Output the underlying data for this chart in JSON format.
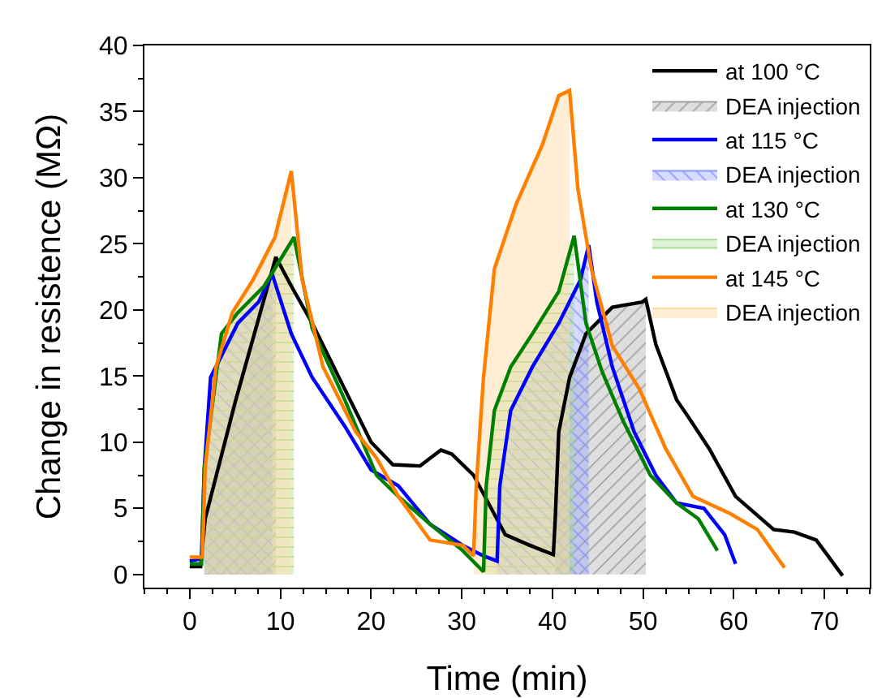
{
  "chart_data": {
    "type": "line",
    "xlabel": "Time (min)",
    "ylabel": "Change in resistence (MΩ)",
    "xlim": [
      -5,
      75
    ],
    "xticks": [
      0,
      10,
      20,
      30,
      40,
      50,
      60,
      70
    ],
    "ylim": [
      -1,
      40
    ],
    "yticks": [
      0,
      5,
      10,
      15,
      20,
      25,
      30,
      35,
      40
    ],
    "grid": false,
    "legend": "top right",
    "marker": "none",
    "line_style": "solid",
    "series": [
      {
        "name": "at 100 °C",
        "color": "#000000",
        "x": [
          0,
          1.2,
          1.7,
          5,
          9.5,
          11.2,
          13.5,
          17.1,
          20,
          22.4,
          25.4,
          27.7,
          28.9,
          31.3,
          34.8,
          37.5,
          40.1,
          40.3,
          40.7,
          41.9,
          43.7,
          46.6,
          49.9,
          50.3,
          51.4,
          53.7,
          54.9,
          57.3,
          60.2,
          64.4,
          66.7,
          69.1,
          72
        ],
        "values": [
          0.6,
          0.6,
          4.2,
          13,
          24,
          21.8,
          19,
          14,
          10,
          8.3,
          8.2,
          9.4,
          9.1,
          7.5,
          3,
          2.2,
          1.5,
          4,
          10.8,
          14.9,
          18.2,
          20.2,
          20.6,
          20.8,
          17.4,
          13.2,
          12,
          9.5,
          5.9,
          3.4,
          3.2,
          2.6,
          -0.1
        ]
      },
      {
        "name": "DEA injection",
        "type": "area",
        "color": "#a0a0a0",
        "x": [
          1.7,
          5,
          9.5
        ],
        "values": [
          4.2,
          13,
          24
        ]
      },
      {
        "type": "area",
        "color": "#a0a0a0",
        "x": [
          40.3,
          40.7,
          41.9,
          43.7,
          46.6,
          49.9,
          50.3
        ],
        "values": [
          4,
          10.8,
          14.9,
          18.2,
          20.2,
          20.6,
          20.8
        ]
      },
      {
        "name": "at 115 °C",
        "color": "#0000ff",
        "x": [
          0,
          1.3,
          1.6,
          2.3,
          5.3,
          7.6,
          9.1,
          11.2,
          13.5,
          17.1,
          20,
          23,
          26.5,
          30.1,
          32.4,
          33.9,
          34.2,
          35.4,
          37.8,
          40.7,
          43.1,
          44,
          44.9,
          46.6,
          49,
          51.4,
          53.7,
          56.7,
          59,
          60.2
        ],
        "values": [
          1,
          1.2,
          8,
          14.9,
          19,
          20.6,
          22.7,
          18.2,
          14.9,
          11.2,
          7.9,
          6.7,
          3.8,
          2.2,
          1.4,
          1,
          6.7,
          12.4,
          15.7,
          19,
          22.3,
          24.9,
          20.6,
          15.7,
          10.8,
          7.5,
          5.4,
          5,
          3,
          0.8
        ]
      },
      {
        "name": "DEA injection",
        "type": "area",
        "color": "#8c96ff",
        "x": [
          1.6,
          2.3,
          5.3,
          7.6,
          9.1
        ],
        "values": [
          8,
          14.9,
          19,
          20.6,
          22.7
        ]
      },
      {
        "type": "area",
        "color": "#8c96ff",
        "x": [
          33.9,
          34.2,
          35.4,
          37.8,
          40.7,
          43.1,
          44
        ],
        "values": [
          1,
          6.7,
          12.4,
          15.7,
          19,
          22.3,
          24.9
        ]
      },
      {
        "name": "at 130 °C",
        "color": "#008000",
        "x": [
          0,
          1.3,
          1.6,
          3.5,
          5.3,
          8.2,
          11.5,
          13.5,
          17.1,
          20.6,
          23,
          26.5,
          30.1,
          32.4,
          32.7,
          33.6,
          35.4,
          37.8,
          40.7,
          42.4,
          43.7,
          45.5,
          47.8,
          50.8,
          53.7,
          56.1,
          58.2
        ],
        "values": [
          0.8,
          0.8,
          8,
          18.2,
          19.8,
          21.8,
          25.5,
          18.6,
          13.2,
          7.5,
          5.9,
          3.8,
          1.8,
          0.2,
          6.7,
          12.4,
          15.7,
          18.2,
          21.4,
          25.6,
          19,
          15.3,
          11.6,
          7.5,
          5.4,
          4.2,
          1.8
        ]
      },
      {
        "name": "DEA injection",
        "type": "area",
        "color": "#a6d98f",
        "x": [
          1.6,
          3.5,
          5.3,
          8.2,
          11.5
        ],
        "values": [
          8,
          18.2,
          19.8,
          21.8,
          25.5
        ]
      },
      {
        "type": "area",
        "color": "#a6d98f",
        "x": [
          32.6,
          32.7,
          33.6,
          35.4,
          37.8,
          40.7,
          42.4
        ],
        "values": [
          0.2,
          6.7,
          12.4,
          15.7,
          18.2,
          21.4,
          25.6
        ]
      },
      {
        "name": "at 145 °C",
        "color": "#ff7f00",
        "x": [
          0,
          1.4,
          1.7,
          2.9,
          4.7,
          7,
          9.4,
          11.2,
          12.4,
          14.7,
          18.3,
          20.6,
          23,
          26.5,
          30.1,
          31.3,
          31.6,
          32.4,
          33.6,
          36,
          38.9,
          40.7,
          41.9,
          42.8,
          44.3,
          46.6,
          49.6,
          52.5,
          55.5,
          59.6,
          62.6,
          65.6
        ],
        "values": [
          1.3,
          1.3,
          8,
          15.7,
          19.8,
          22.3,
          25.5,
          30.5,
          22.3,
          15.7,
          10.8,
          8.8,
          5.9,
          2.6,
          2.2,
          1.4,
          6.7,
          14.9,
          23.1,
          28,
          32.5,
          36.2,
          36.6,
          29.2,
          23.1,
          17.3,
          14,
          9.5,
          5.9,
          4.6,
          3.4,
          0.5
        ]
      },
      {
        "name": "DEA injection",
        "type": "area",
        "color": "#ffd9a0",
        "x": [
          1.7,
          2.9,
          4.7,
          7,
          9.4,
          11.2
        ],
        "values": [
          8,
          15.7,
          19.8,
          22.3,
          25.5,
          30.5
        ]
      },
      {
        "type": "area",
        "color": "#ffd9a0",
        "x": [
          31.3,
          31.6,
          32.4,
          33.6,
          36,
          38.9,
          40.7,
          41.9
        ],
        "values": [
          1.4,
          6.7,
          14.9,
          23.1,
          28,
          32.5,
          36.2,
          36.6
        ]
      }
    ]
  }
}
